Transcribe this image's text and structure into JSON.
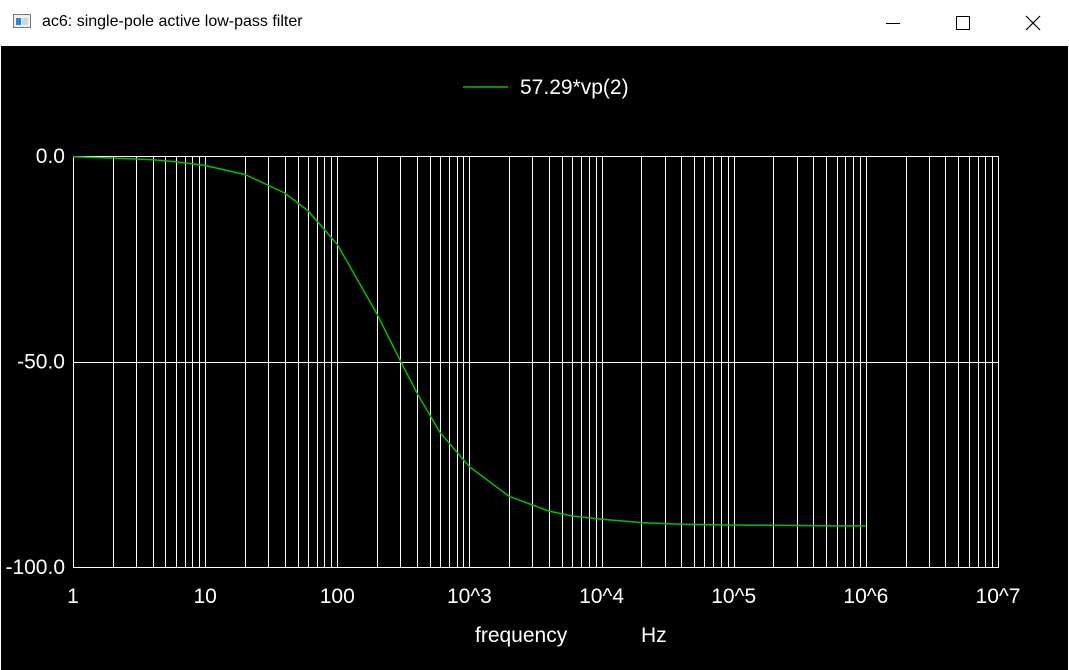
{
  "window": {
    "title": "ac6: single-pole active low-pass filter"
  },
  "controls": {
    "minimize_icon": "minimize-icon",
    "maximize_icon": "maximize-icon",
    "close_icon": "close-icon"
  },
  "chart_data": {
    "type": "line",
    "xscale": "log",
    "xlim": [
      1,
      10000000
    ],
    "ylim": [
      -100,
      0
    ],
    "xlabel": "frequency",
    "xunit": "Hz",
    "ylabel": "",
    "grid": true,
    "legend": "top-center",
    "background": "#000000",
    "grid_color": "#ffffff",
    "x_tick_labels": [
      "1",
      "10",
      "100",
      "10^3",
      "10^4",
      "10^5",
      "10^6",
      "10^7"
    ],
    "y_tick_labels": [
      "0.0",
      "-50.0",
      "-100.0"
    ],
    "series": [
      {
        "name": "57.29*vp(2)",
        "color": "#00c000",
        "x": [
          1,
          2,
          4,
          6,
          10,
          20,
          40,
          60,
          100,
          200,
          300,
          400,
          600,
          1000,
          2000,
          4000,
          6000,
          10000,
          20000,
          40000,
          100000,
          300000,
          600000,
          1000000
        ],
        "y": [
          -0.2,
          -0.5,
          -0.9,
          -1.4,
          -2.3,
          -4.5,
          -9.0,
          -13.3,
          -21.5,
          -38.5,
          -49.8,
          -57.6,
          -67.3,
          -75.6,
          -82.8,
          -86.4,
          -87.6,
          -88.4,
          -89.2,
          -89.6,
          -89.8,
          -89.9,
          -90.0,
          -90.0
        ]
      }
    ]
  }
}
